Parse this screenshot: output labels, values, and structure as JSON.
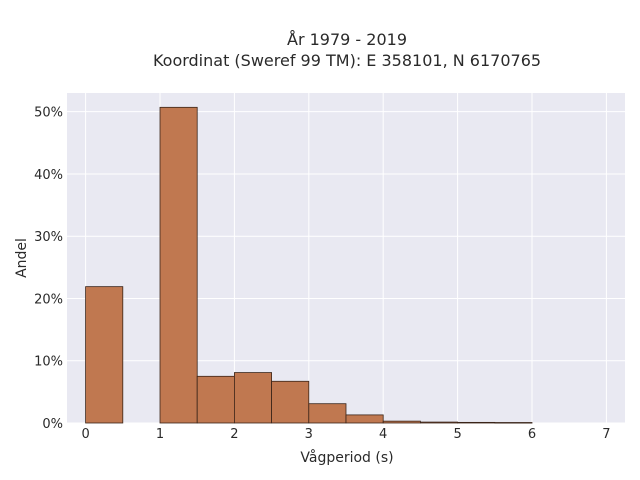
{
  "chart_data": {
    "type": "bar",
    "title_line1": "År 1979 - 2019",
    "title_line2": "Koordinat (Sweref 99 TM): E 358101, N 6170765",
    "xlabel": "Vågperiod (s)",
    "ylabel": "Andel",
    "xlim": [
      -0.25,
      7.25
    ],
    "ylim": [
      0,
      53
    ],
    "x_ticks": [
      0,
      1,
      2,
      3,
      4,
      5,
      6,
      7
    ],
    "y_ticks": [
      0,
      10,
      20,
      30,
      40,
      50
    ],
    "y_tick_labels": [
      "0%",
      "10%",
      "20%",
      "30%",
      "40%",
      "50%"
    ],
    "bin_width": 0.5,
    "bins": [
      {
        "start": 0.0,
        "value": 21.9
      },
      {
        "start": 0.5,
        "value": 0.0
      },
      {
        "start": 1.0,
        "value": 50.7
      },
      {
        "start": 1.5,
        "value": 7.5
      },
      {
        "start": 2.0,
        "value": 8.1
      },
      {
        "start": 2.5,
        "value": 6.7
      },
      {
        "start": 3.0,
        "value": 3.1
      },
      {
        "start": 3.5,
        "value": 1.3
      },
      {
        "start": 4.0,
        "value": 0.3
      },
      {
        "start": 4.5,
        "value": 0.15
      },
      {
        "start": 5.0,
        "value": 0.1
      },
      {
        "start": 5.5,
        "value": 0.08
      }
    ],
    "bar_color": "#c07850",
    "bar_edge_color": "#3a2418",
    "plot_bg": "#e9e9f2",
    "grid": true
  }
}
